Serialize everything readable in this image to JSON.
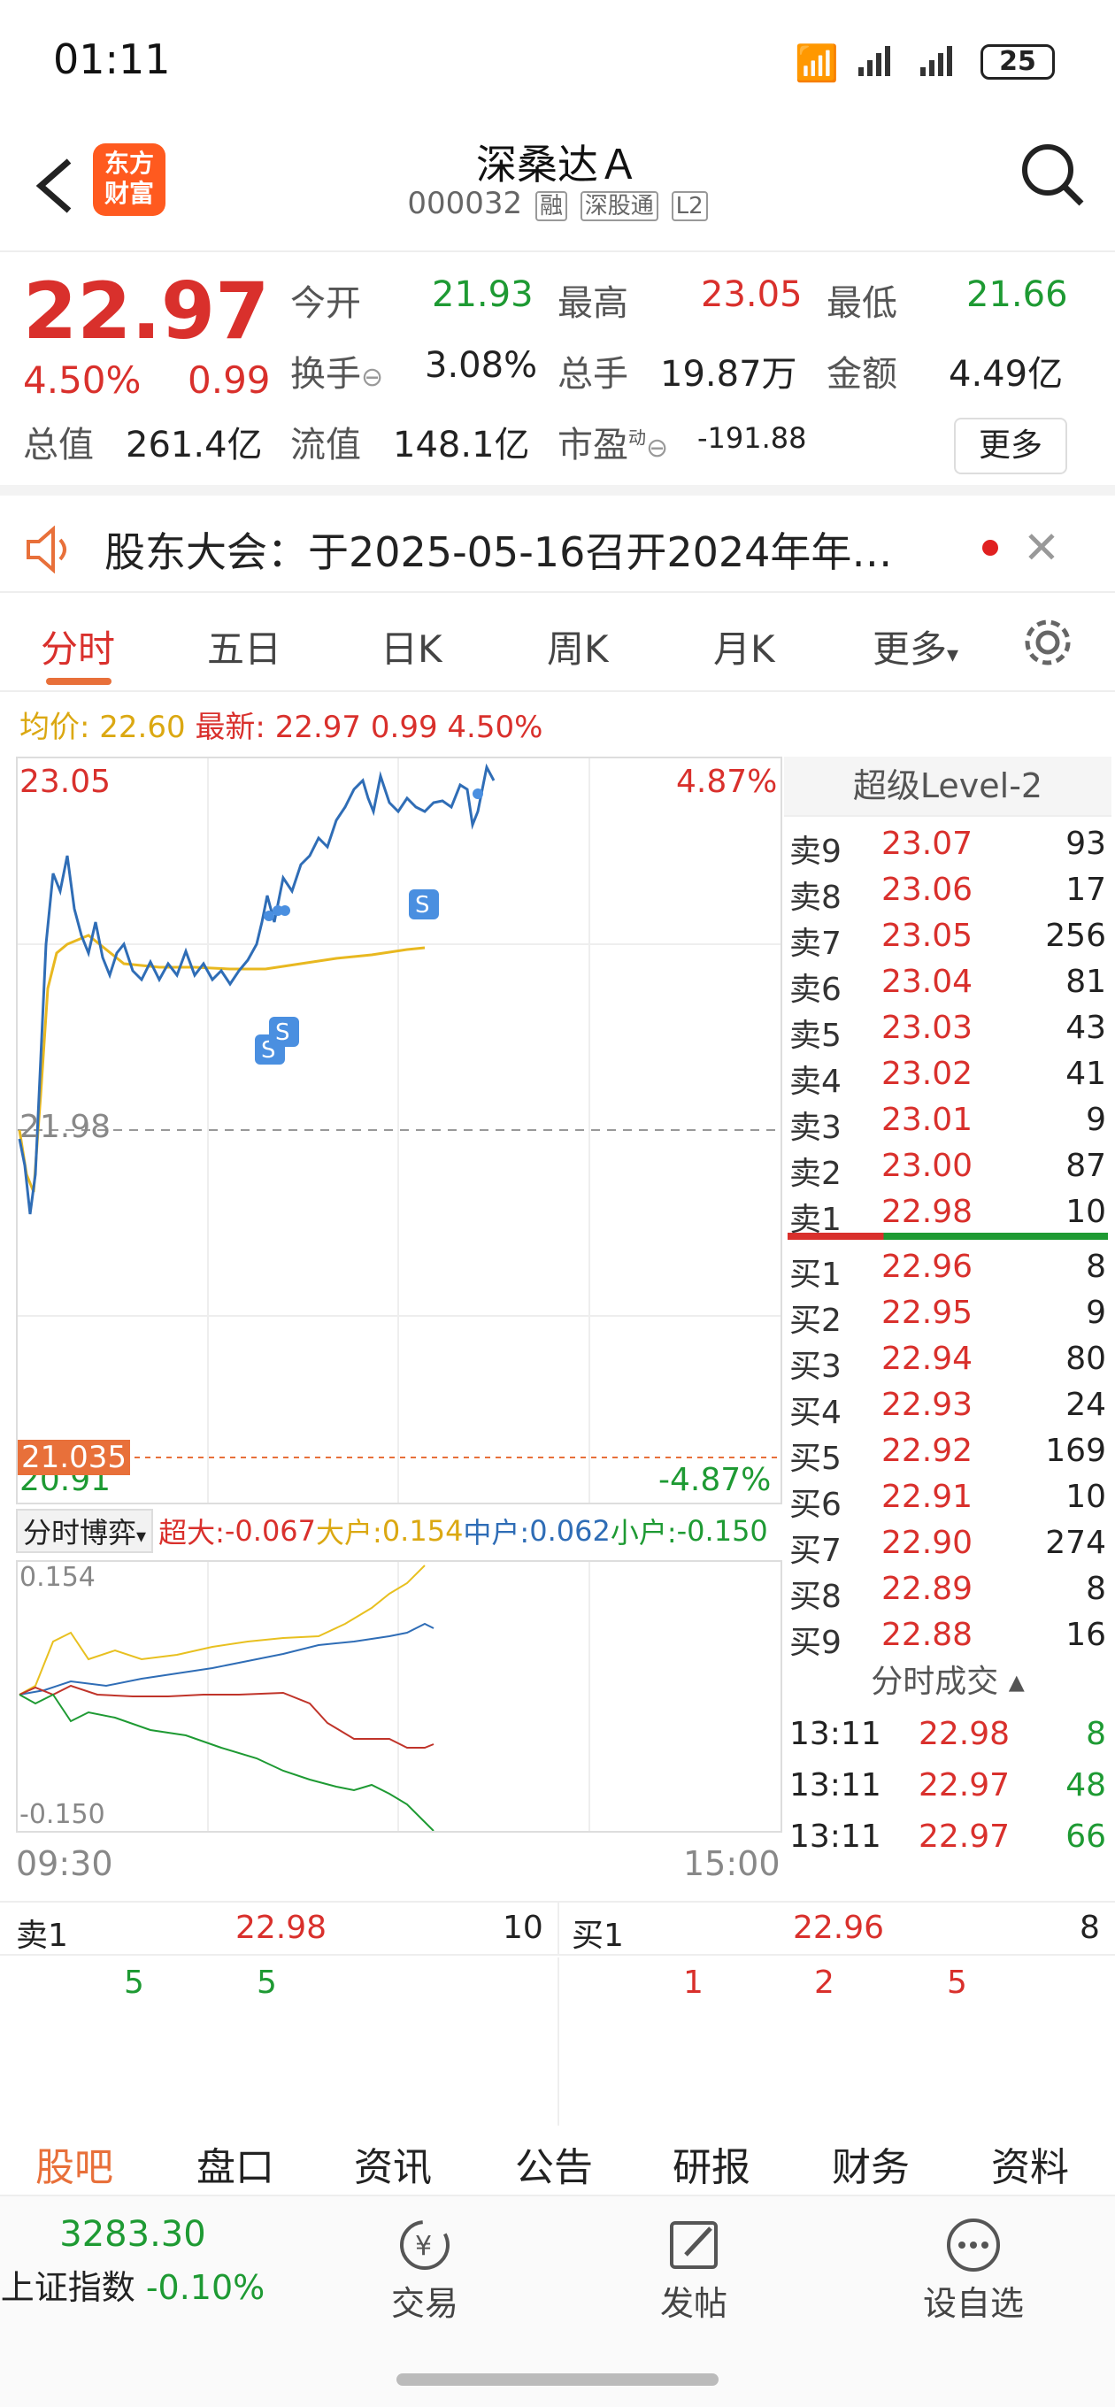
{
  "status": {
    "time": "01:11",
    "battery": "25"
  },
  "header": {
    "title": "深桑达Ａ",
    "code": "000032",
    "tags": [
      "融",
      "深股通",
      "L2"
    ],
    "logo_line1": "东方",
    "logo_line2": "财富"
  },
  "quote": {
    "price": "22.97",
    "change_pct": "4.50%",
    "change": "0.99",
    "open_label": "今开",
    "open": "21.93",
    "high_label": "最高",
    "high": "23.05",
    "low_label": "最低",
    "low": "21.66",
    "turnover_label": "换手",
    "turnover": "3.08%",
    "volume_label": "总手",
    "volume": "19.87万",
    "amount_label": "金额",
    "amount": "4.49亿",
    "mcap_label": "总值",
    "mcap": "261.4亿",
    "float_label": "流值",
    "float": "148.1亿",
    "pe_label": "市盈",
    "pe_sup": "动",
    "pe": "-191.88",
    "more": "更多"
  },
  "notice": {
    "text": "股东大会：于2025-05-16召开2024年年…"
  },
  "tabs": [
    "分时",
    "五日",
    "日K",
    "周K",
    "月K",
    "更多"
  ],
  "legend": {
    "avg_label": "均价:",
    "avg": "22.60",
    "last_label": "最新:",
    "last": "22.97",
    "chg": "0.99",
    "pct": "4.50%"
  },
  "chart": {
    "y_max": "23.05",
    "y_mid": "21.98",
    "y_min": "20.91",
    "pct_max": "4.87%",
    "pct_min": "-4.87%",
    "marker": "21.035",
    "time_start": "09:30",
    "time_end": "15:00",
    "accent": "#2f6db6",
    "avg_color": "#e8b820"
  },
  "subchart": {
    "selector": "分时博弈",
    "super_label": "超大:",
    "super": "-0.067",
    "large_label": "大户:",
    "large": "0.154",
    "mid_label": "中户:",
    "mid": "0.062",
    "small_label": "小户:",
    "small": "-0.150",
    "top": "0.154",
    "bottom": "-0.150"
  },
  "orderbook": {
    "title": "超级Level-2",
    "asks": [
      {
        "label": "卖9",
        "price": "23.07",
        "vol": "93"
      },
      {
        "label": "卖8",
        "price": "23.06",
        "vol": "17"
      },
      {
        "label": "卖7",
        "price": "23.05",
        "vol": "256"
      },
      {
        "label": "卖6",
        "price": "23.04",
        "vol": "81"
      },
      {
        "label": "卖5",
        "price": "23.03",
        "vol": "43"
      },
      {
        "label": "卖4",
        "price": "23.02",
        "vol": "41"
      },
      {
        "label": "卖3",
        "price": "23.01",
        "vol": "9"
      },
      {
        "label": "卖2",
        "price": "23.00",
        "vol": "87"
      },
      {
        "label": "卖1",
        "price": "22.98",
        "vol": "10"
      }
    ],
    "bids": [
      {
        "label": "买1",
        "price": "22.96",
        "vol": "8"
      },
      {
        "label": "买2",
        "price": "22.95",
        "vol": "9"
      },
      {
        "label": "买3",
        "price": "22.94",
        "vol": "80"
      },
      {
        "label": "买4",
        "price": "22.93",
        "vol": "24"
      },
      {
        "label": "买5",
        "price": "22.92",
        "vol": "169"
      },
      {
        "label": "买6",
        "price": "22.91",
        "vol": "10"
      },
      {
        "label": "买7",
        "price": "22.90",
        "vol": "274"
      },
      {
        "label": "买8",
        "price": "22.89",
        "vol": "8"
      },
      {
        "label": "买9",
        "price": "22.88",
        "vol": "16"
      }
    ],
    "trades_title": "分时成交",
    "trades": [
      {
        "time": "13:11",
        "price": "22.98",
        "vol": "8"
      },
      {
        "time": "13:11",
        "price": "22.97",
        "vol": "48"
      },
      {
        "time": "13:11",
        "price": "22.97",
        "vol": "66"
      }
    ]
  },
  "bottom_quote": {
    "ask_label": "卖1",
    "ask_price": "22.98",
    "ask_vol": "10",
    "bid_label": "买1",
    "bid_price": "22.96",
    "bid_vol": "8",
    "ask_queue": [
      "5",
      "5"
    ],
    "bid_queue": [
      "1",
      "2",
      "5"
    ]
  },
  "bottom_tabs": [
    "股吧",
    "盘口",
    "资讯",
    "公告",
    "研报",
    "财务",
    "资料"
  ],
  "footer": {
    "index_value": "3283.30",
    "index_label": "上证指数",
    "index_change": "-0.10%",
    "trade": "交易",
    "post": "发帖",
    "watch": "设自选"
  }
}
